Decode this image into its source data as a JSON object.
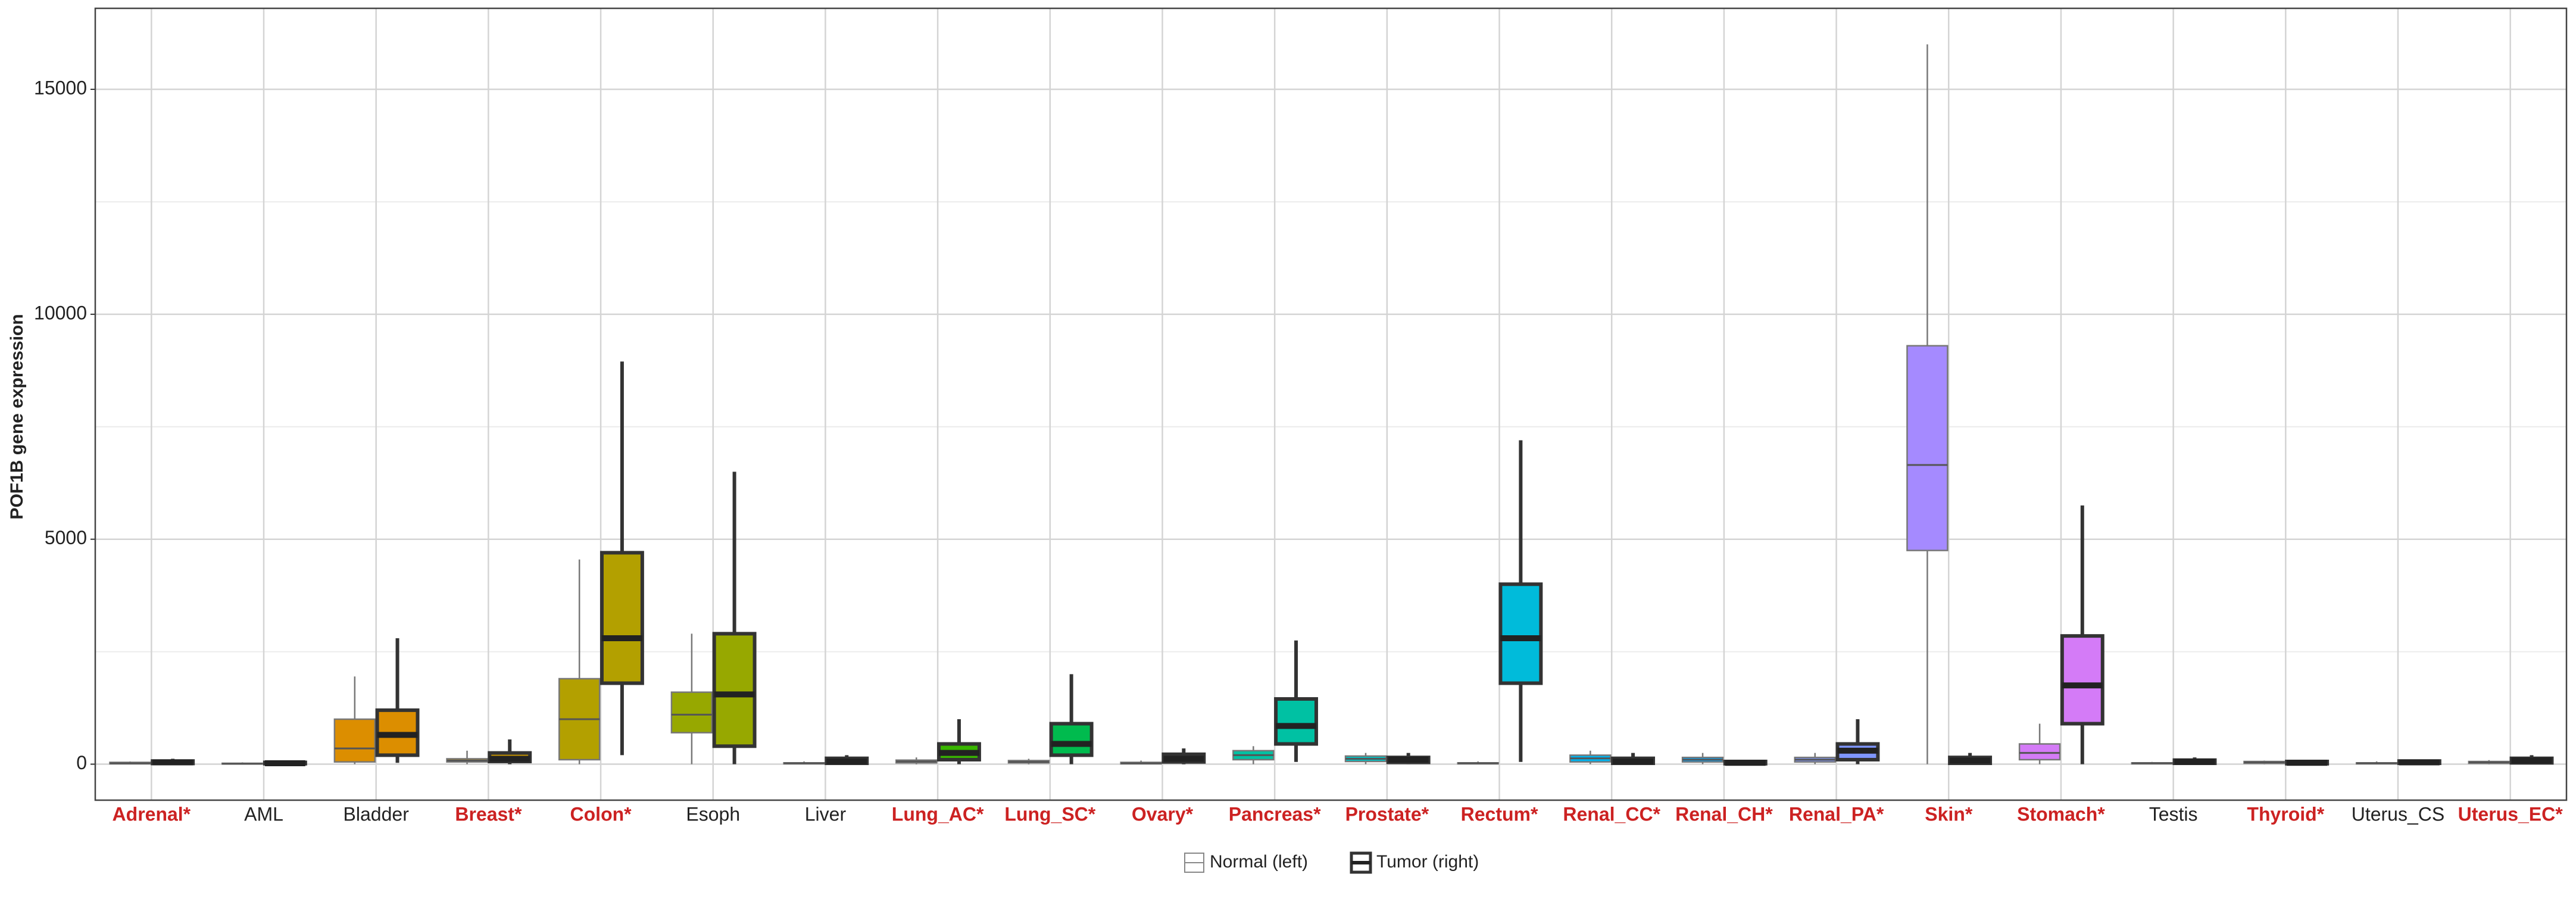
{
  "chart_data": {
    "type": "box",
    "y_label": "POF1B gene expression",
    "categories": [
      "Adrenal*",
      "AML",
      "Bladder",
      "Breast*",
      "Colon*",
      "Esoph",
      "Liver",
      "Lung_AC*",
      "Lung_SC*",
      "Ovary*",
      "Pancreas*",
      "Prostate*",
      "Rectum*",
      "Renal_CC*",
      "Renal_CH*",
      "Renal_PA*",
      "Skin*",
      "Stomach*",
      "Testis",
      "Thyroid*",
      "Uterus_CS",
      "Uterus_EC*"
    ],
    "label_colors": [
      "#cc2222",
      "#222222",
      "#222222",
      "#cc2222",
      "#cc2222",
      "#222222",
      "#222222",
      "#cc2222",
      "#cc2222",
      "#cc2222",
      "#cc2222",
      "#cc2222",
      "#cc2222",
      "#cc2222",
      "#cc2222",
      "#cc2222",
      "#cc2222",
      "#cc2222",
      "#222222",
      "#cc2222",
      "#222222",
      "#cc2222"
    ],
    "category_colors": [
      "#F8766D",
      "#EB8335",
      "#DC8E00",
      "#CA9700",
      "#B3A000",
      "#97A800",
      "#72AF00",
      "#39B600",
      "#00BB4E",
      "#00BF7D",
      "#00C1A3",
      "#00C0C2",
      "#00BBDA",
      "#00B2EE",
      "#00A5FF",
      "#7F96FF",
      "#A58AFF",
      "#D47BF7",
      "#EB6DE5",
      "#F866CC",
      "#FD63B2",
      "#FF6C91"
    ],
    "series": [
      {
        "name": "Normal (left)",
        "values": [
          {
            "min": 0,
            "q1": 10,
            "median": 20,
            "q3": 40,
            "max": 60
          },
          {
            "min": 0,
            "q1": 5,
            "median": 10,
            "q3": 20,
            "max": 40
          },
          {
            "min": 0,
            "q1": 50,
            "median": 350,
            "q3": 1000,
            "max": 1950
          },
          {
            "min": 0,
            "q1": 50,
            "median": 80,
            "q3": 120,
            "max": 300
          },
          {
            "min": 0,
            "q1": 100,
            "median": 1000,
            "q3": 1900,
            "max": 4550
          },
          {
            "min": 0,
            "q1": 700,
            "median": 1100,
            "q3": 1600,
            "max": 2900
          },
          {
            "min": 0,
            "q1": 10,
            "median": 20,
            "q3": 30,
            "max": 60
          },
          {
            "min": 0,
            "q1": 30,
            "median": 60,
            "q3": 90,
            "max": 150
          },
          {
            "min": 0,
            "q1": 30,
            "median": 50,
            "q3": 80,
            "max": 120
          },
          {
            "min": 0,
            "q1": 10,
            "median": 20,
            "q3": 40,
            "max": 80
          },
          {
            "min": 0,
            "q1": 100,
            "median": 200,
            "q3": 300,
            "max": 400
          },
          {
            "min": 0,
            "q1": 60,
            "median": 120,
            "q3": 180,
            "max": 250
          },
          {
            "min": 0,
            "q1": 10,
            "median": 20,
            "q3": 30,
            "max": 60
          },
          {
            "min": 0,
            "q1": 50,
            "median": 130,
            "q3": 200,
            "max": 300
          },
          {
            "min": 0,
            "q1": 50,
            "median": 100,
            "q3": 150,
            "max": 250
          },
          {
            "min": 0,
            "q1": 50,
            "median": 100,
            "q3": 150,
            "max": 250
          },
          {
            "min": 0,
            "q1": 4750,
            "median": 6650,
            "q3": 9300,
            "max": 16000
          },
          {
            "min": 0,
            "q1": 100,
            "median": 250,
            "q3": 450,
            "max": 900
          },
          {
            "min": 0,
            "q1": 10,
            "median": 20,
            "q3": 30,
            "max": 50
          },
          {
            "min": 0,
            "q1": 20,
            "median": 40,
            "q3": 60,
            "max": 80
          },
          {
            "min": 0,
            "q1": 10,
            "median": 20,
            "q3": 30,
            "max": 60
          },
          {
            "min": 0,
            "q1": 20,
            "median": 40,
            "q3": 60,
            "max": 90
          }
        ]
      },
      {
        "name": "Tumor (right)",
        "values": [
          {
            "min": 0,
            "q1": 15,
            "median": 40,
            "q3": 70,
            "max": 120
          },
          {
            "min": 0,
            "q1": 10,
            "median": 20,
            "q3": 40,
            "max": 80
          },
          {
            "min": 30,
            "q1": 200,
            "median": 650,
            "q3": 1200,
            "max": 2800
          },
          {
            "min": 0,
            "q1": 60,
            "median": 120,
            "q3": 250,
            "max": 550
          },
          {
            "min": 200,
            "q1": 1800,
            "median": 2800,
            "q3": 4700,
            "max": 8950
          },
          {
            "min": 0,
            "q1": 400,
            "median": 1550,
            "q3": 2900,
            "max": 6500
          },
          {
            "min": 0,
            "q1": 20,
            "median": 60,
            "q3": 130,
            "max": 200
          },
          {
            "min": 0,
            "q1": 100,
            "median": 250,
            "q3": 450,
            "max": 1000
          },
          {
            "min": 0,
            "q1": 200,
            "median": 450,
            "q3": 900,
            "max": 2000
          },
          {
            "min": 0,
            "q1": 50,
            "median": 120,
            "q3": 220,
            "max": 350
          },
          {
            "min": 50,
            "q1": 450,
            "median": 850,
            "q3": 1450,
            "max": 2750
          },
          {
            "min": 0,
            "q1": 40,
            "median": 100,
            "q3": 150,
            "max": 250
          },
          {
            "min": 50,
            "q1": 1800,
            "median": 2800,
            "q3": 4000,
            "max": 7200
          },
          {
            "min": 0,
            "q1": 20,
            "median": 60,
            "q3": 130,
            "max": 250
          },
          {
            "min": 0,
            "q1": 10,
            "median": 30,
            "q3": 60,
            "max": 100
          },
          {
            "min": 0,
            "q1": 100,
            "median": 300,
            "q3": 450,
            "max": 1000
          },
          {
            "min": 0,
            "q1": 20,
            "median": 80,
            "q3": 150,
            "max": 250
          },
          {
            "min": 0,
            "q1": 900,
            "median": 1750,
            "q3": 2850,
            "max": 5750
          },
          {
            "min": 0,
            "q1": 20,
            "median": 50,
            "q3": 90,
            "max": 150
          },
          {
            "min": 0,
            "q1": 10,
            "median": 30,
            "q3": 60,
            "max": 100
          },
          {
            "min": 0,
            "q1": 20,
            "median": 40,
            "q3": 70,
            "max": 100
          },
          {
            "min": 0,
            "q1": 30,
            "median": 80,
            "q3": 130,
            "max": 200
          }
        ]
      }
    ],
    "ylim": [
      -800,
      16800
    ],
    "yticks": [
      0,
      5000,
      10000,
      15000
    ],
    "minor_yticks": [
      2500,
      7500,
      12500
    ],
    "grid": true
  }
}
